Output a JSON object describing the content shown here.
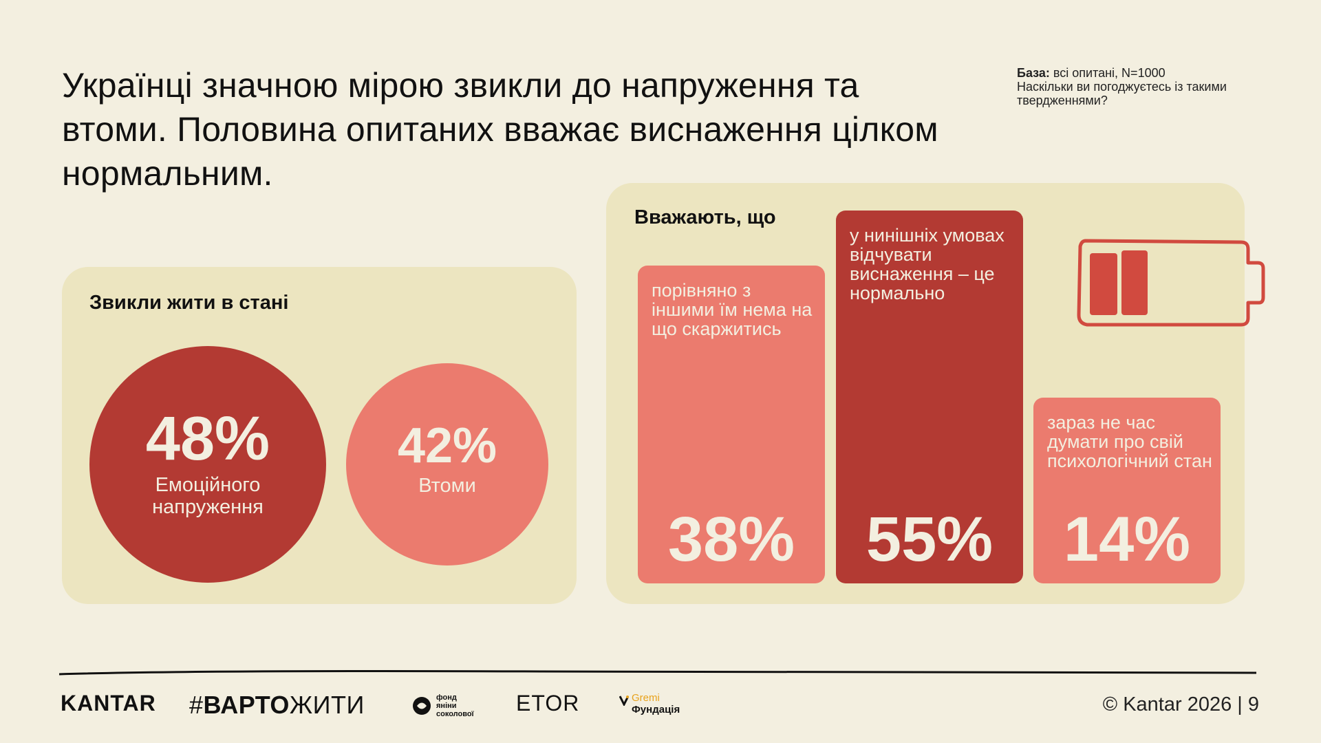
{
  "title": "Українці значною мірою звикли до напруження та втоми. Половина опитаних вважає виснаження цілком нормальним.",
  "base_note": {
    "label": "База:",
    "text": " всі опитані, N=1000",
    "question": "Наскільки ви погоджуєтесь із такими твердженнями?"
  },
  "left_panel": {
    "heading": "Звикли жити в стані"
  },
  "right_panel": {
    "heading": "Вважають, що"
  },
  "chart_data": [
    {
      "type": "bubble",
      "title": "Звикли жити в стані",
      "categories": [
        "Емоційного напруження",
        "Втоми"
      ],
      "values": [
        48,
        42
      ],
      "labels": [
        "48%",
        "42%"
      ],
      "colors": [
        "#b33a33",
        "#eb7b6e"
      ]
    },
    {
      "type": "bar",
      "title": "Вважають, що",
      "categories": [
        "порівняно з іншими  їм нема на що скаржитись",
        "у нинішніх умовах відчувати виснаження – це нормально",
        "зараз не час думати про свій психологічний стан"
      ],
      "values": [
        38,
        55,
        14
      ],
      "labels": [
        "38%",
        "55%",
        "14%"
      ],
      "colors": [
        "#eb7b6e",
        "#b33a33",
        "#eb7b6e"
      ]
    }
  ],
  "footer": {
    "kantar": "KANTAR",
    "varto_hash": "#",
    "varto_bold": "ВАРТО",
    "varto_rest": "ЖИТИ",
    "fond_line1": "фонд",
    "fond_line2": "яніни",
    "fond_line3": "соколової",
    "etor": "ETOR",
    "gremi_line1": "Gremi",
    "gremi_line2": "Фундація",
    "copyright": "© Kantar 2026 | 9"
  },
  "colors": {
    "background": "#f3efe0",
    "panel": "#ece5c0",
    "dark_red": "#b33a33",
    "salmon": "#eb7b6e",
    "cream_text": "#f3efe0",
    "gremi_orange": "#e8a21c"
  },
  "icons": [
    "battery-low-icon"
  ]
}
